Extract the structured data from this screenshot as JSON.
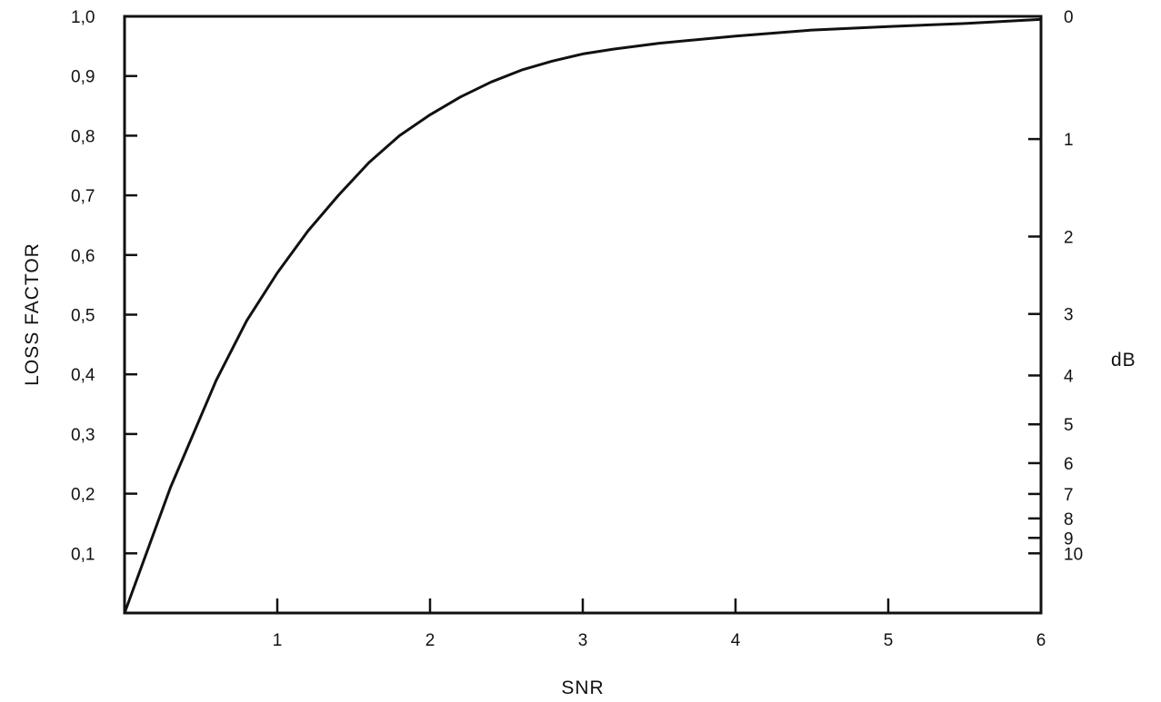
{
  "chart_data": {
    "type": "line",
    "title": "",
    "xlabel": "SNR",
    "ylabel": "LOSS FACTOR",
    "y2label": "dB",
    "xlim": [
      0,
      6
    ],
    "ylim": [
      0,
      1.0
    ],
    "grid": false,
    "x_ticks": [
      {
        "value": 1,
        "label": "1"
      },
      {
        "value": 2,
        "label": "2"
      },
      {
        "value": 3,
        "label": "3"
      },
      {
        "value": 4,
        "label": "4"
      },
      {
        "value": 5,
        "label": "5"
      },
      {
        "value": 6,
        "label": "6"
      }
    ],
    "y_ticks": [
      {
        "value": 0.1,
        "label": "0,1"
      },
      {
        "value": 0.2,
        "label": "0,2"
      },
      {
        "value": 0.3,
        "label": "0,3"
      },
      {
        "value": 0.4,
        "label": "0,4"
      },
      {
        "value": 0.5,
        "label": "0,5"
      },
      {
        "value": 0.6,
        "label": "0,6"
      },
      {
        "value": 0.7,
        "label": "0,7"
      },
      {
        "value": 0.8,
        "label": "0,8"
      },
      {
        "value": 0.9,
        "label": "0,9"
      },
      {
        "value": 1.0,
        "label": "1,0"
      }
    ],
    "y2_ticks": [
      {
        "db": 0,
        "label": "0"
      },
      {
        "db": 1,
        "label": "1"
      },
      {
        "db": 2,
        "label": "2"
      },
      {
        "db": 3,
        "label": "3"
      },
      {
        "db": 4,
        "label": "4"
      },
      {
        "db": 5,
        "label": "5"
      },
      {
        "db": 6,
        "label": "6"
      },
      {
        "db": 7,
        "label": "7"
      },
      {
        "db": 8,
        "label": "8"
      },
      {
        "db": 9,
        "label": "9"
      },
      {
        "db": 10,
        "label": "10"
      }
    ],
    "series": [
      {
        "x": [
          0,
          0.1,
          0.2,
          0.3,
          0.4,
          0.5,
          0.6,
          0.7,
          0.8,
          0.9,
          1.0,
          1.2,
          1.4,
          1.6,
          1.8,
          2.0,
          2.2,
          2.4,
          2.6,
          2.8,
          3.0,
          3.2,
          3.5,
          4.0,
          4.5,
          5.0,
          5.5,
          6.0
        ],
        "y": [
          0,
          0.07,
          0.14,
          0.21,
          0.27,
          0.33,
          0.39,
          0.44,
          0.49,
          0.53,
          0.57,
          0.64,
          0.7,
          0.755,
          0.8,
          0.835,
          0.865,
          0.89,
          0.91,
          0.925,
          0.937,
          0.945,
          0.955,
          0.967,
          0.977,
          0.983,
          0.988,
          0.995
        ]
      }
    ]
  }
}
